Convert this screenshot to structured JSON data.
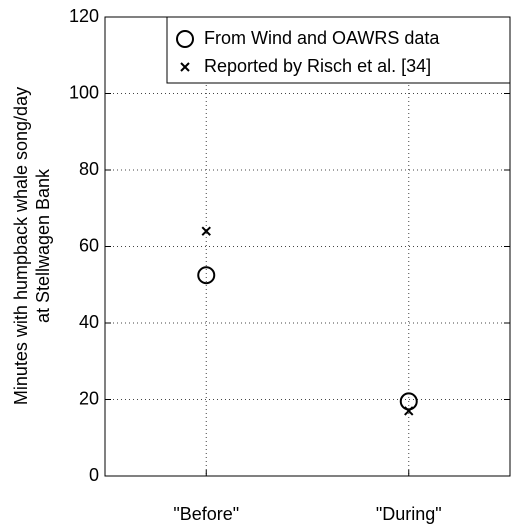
{
  "chart_data": {
    "type": "scatter",
    "y_label": [
      "Minutes with humpback whale song/day",
      "at Stellwagen Bank"
    ],
    "categories": [
      "\"Before\"",
      "\"During\""
    ],
    "series": [
      {
        "name": "From Wind and OAWRS data",
        "marker": "o",
        "color": "#000000",
        "values": [
          52.5,
          19.5
        ]
      },
      {
        "name": "Reported by Risch et al. [34]",
        "marker": "x",
        "color": "#000000",
        "values": [
          64,
          17
        ]
      }
    ],
    "ylim": [
      0,
      120
    ],
    "yticks": [
      0,
      20,
      40,
      60,
      80,
      100,
      120
    ],
    "grid": true,
    "legend": "upper right"
  }
}
